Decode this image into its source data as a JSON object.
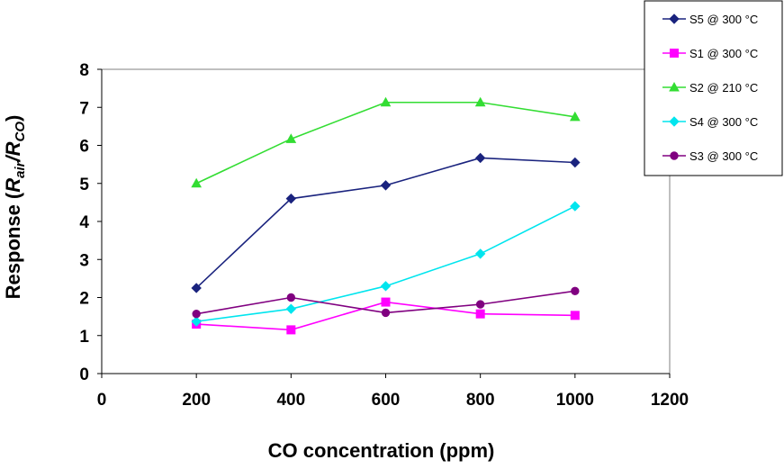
{
  "chart_data": {
    "type": "line",
    "title": "",
    "xlabel": "CO concentration (ppm)",
    "ylabel": "Response (Rair/RCO)",
    "ylabel_parts": {
      "prefix": "Response (",
      "r1": "R",
      "sub1": "air",
      "slash": "/",
      "r2": "R",
      "sub2": "CO",
      "suffix": ")"
    },
    "xlim": [
      0,
      1200
    ],
    "ylim": [
      0,
      8
    ],
    "xticks": [
      0,
      200,
      400,
      600,
      800,
      1000,
      1200
    ],
    "yticks": [
      0,
      1,
      2,
      3,
      4,
      5,
      6,
      7,
      8
    ],
    "grid": false,
    "legend_position": "top-right",
    "series": [
      {
        "name": "S5 @ 300 °C",
        "color": "#1A237E",
        "marker": "diamond",
        "x": [
          200,
          400,
          600,
          800,
          1000
        ],
        "y": [
          2.25,
          4.6,
          4.95,
          5.67,
          5.55
        ]
      },
      {
        "name": "S1 @ 300 °C",
        "color": "#FF00FF",
        "marker": "square",
        "x": [
          200,
          400,
          600,
          800,
          1000
        ],
        "y": [
          1.3,
          1.15,
          1.88,
          1.57,
          1.53
        ]
      },
      {
        "name": "S2 @ 210 °C",
        "color": "#33DD33",
        "marker": "triangle",
        "x": [
          200,
          400,
          600,
          800,
          1000
        ],
        "y": [
          5.0,
          6.17,
          7.13,
          7.13,
          6.75
        ]
      },
      {
        "name": "S4 @ 300 °C",
        "color": "#00E5EE",
        "marker": "diamond",
        "x": [
          200,
          400,
          600,
          800,
          1000
        ],
        "y": [
          1.37,
          1.7,
          2.3,
          3.15,
          4.4
        ]
      },
      {
        "name": "S3 @ 300 °C",
        "color": "#800080",
        "marker": "circle",
        "x": [
          200,
          400,
          600,
          800,
          1000
        ],
        "y": [
          1.57,
          2.0,
          1.6,
          1.82,
          2.17
        ]
      }
    ]
  }
}
